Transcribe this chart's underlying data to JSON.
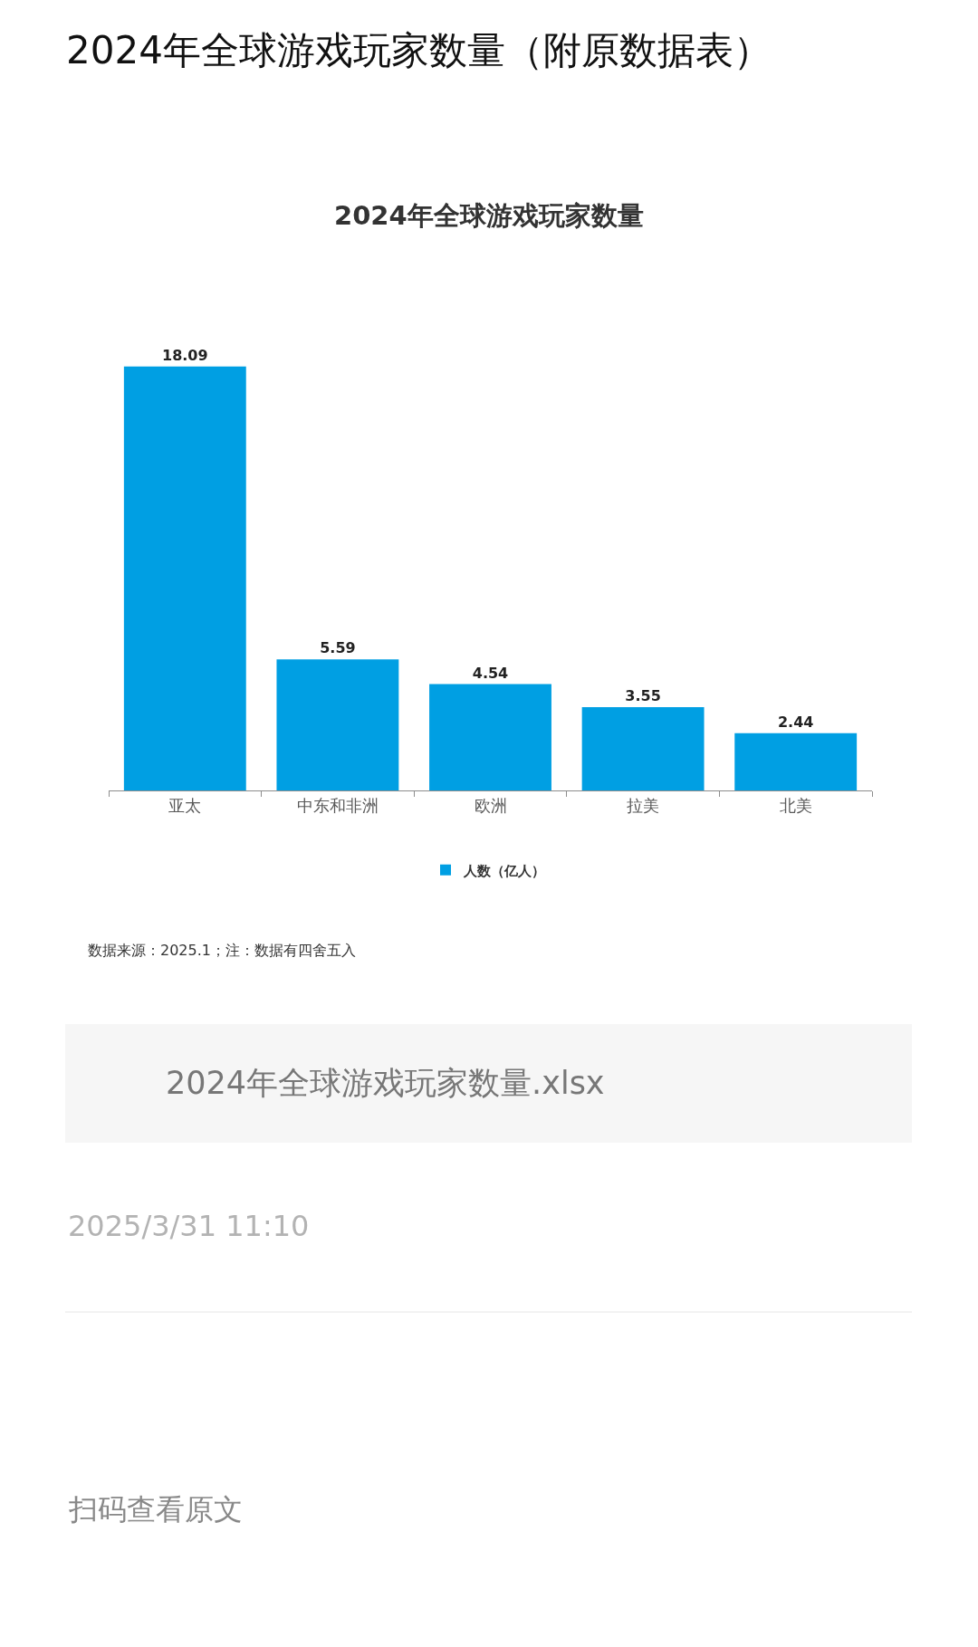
{
  "chart_data": {
    "type": "bar",
    "title": "2024年全球游戏玩家数量（附原数据表）",
    "subtitle": "2024年全球游戏玩家数量",
    "categories": [
      "亚太",
      "中东和非洲",
      "欧洲",
      "拉美",
      "北美"
    ],
    "series": [
      {
        "name": "人数（亿人）",
        "color": "#009fe3",
        "values": [
          18.09,
          5.59,
          4.54,
          3.55,
          2.44
        ]
      }
    ],
    "data_labels": true,
    "legend": "bottom",
    "annotations": [
      "数据来源：2025.1；注：数据有四舍五入",
      "2024年全球游戏玩家数量.xlsx",
      "2025/3/31 11:10",
      "扫码查看原文"
    ]
  }
}
